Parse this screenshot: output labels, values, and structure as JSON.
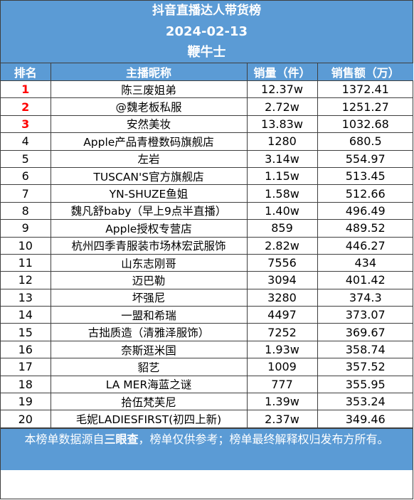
{
  "header": {
    "title": "抖音直播达人带货榜",
    "date": "2024-02-13",
    "brand": "鞭牛士"
  },
  "columns": [
    "排名",
    "主播昵称",
    "销量（件）",
    "销售额（万）"
  ],
  "colors": {
    "header_bg": "#5b9bd5",
    "top_rank": "#ff0000"
  },
  "rows": [
    {
      "rank": "1",
      "name": "陈三废姐弟",
      "sales": "12.37w",
      "revenue": "1372.41"
    },
    {
      "rank": "2",
      "name": "@魏老板私服",
      "sales": "2.72w",
      "revenue": "1251.27"
    },
    {
      "rank": "3",
      "name": "安然美妆",
      "sales": "13.83w",
      "revenue": "1032.68"
    },
    {
      "rank": "4",
      "name": "Apple产品青橙数码旗舰店",
      "sales": "1280",
      "revenue": "680.5"
    },
    {
      "rank": "5",
      "name": "左岩",
      "sales": "3.14w",
      "revenue": "554.97"
    },
    {
      "rank": "6",
      "name": "TUSCAN'S官方旗舰店",
      "sales": "1.15w",
      "revenue": "513.45"
    },
    {
      "rank": "7",
      "name": "YN-SHUZE鱼姐",
      "sales": "1.58w",
      "revenue": "512.66"
    },
    {
      "rank": "8",
      "name": "魏凡舒baby（早上9点半直播）",
      "sales": "1.40w",
      "revenue": "496.49"
    },
    {
      "rank": "9",
      "name": "Apple授权专营店",
      "sales": "859",
      "revenue": "489.52"
    },
    {
      "rank": "10",
      "name": "杭州四季青服装市场林宏武服饰",
      "sales": "2.82w",
      "revenue": "446.27"
    },
    {
      "rank": "11",
      "name": "山东志刚哥",
      "sales": "7556",
      "revenue": "434"
    },
    {
      "rank": "12",
      "name": "迈巴勒",
      "sales": "3094",
      "revenue": "401.42"
    },
    {
      "rank": "13",
      "name": "坏强尼",
      "sales": "3280",
      "revenue": "374.3"
    },
    {
      "rank": "14",
      "name": "一盟和希瑞",
      "sales": "4497",
      "revenue": "373.07"
    },
    {
      "rank": "15",
      "name": "古拙质造（清雅泽服饰）",
      "sales": "7252",
      "revenue": "369.67"
    },
    {
      "rank": "16",
      "name": "奈斯逛米国",
      "sales": "1.93w",
      "revenue": "358.74"
    },
    {
      "rank": "17",
      "name": "貂艺",
      "sales": "1009",
      "revenue": "357.52"
    },
    {
      "rank": "18",
      "name": "LA MER海蓝之谜",
      "sales": "777",
      "revenue": "355.95"
    },
    {
      "rank": "19",
      "name": "拾伍梵芙尼",
      "sales": "1.39w",
      "revenue": "353.24"
    },
    {
      "rank": "20",
      "name": "毛妮LADIESFIRST(初四上新)",
      "sales": "2.37w",
      "revenue": "349.46"
    }
  ],
  "footer": {
    "text_before": "本榜单数据源自",
    "source": "三眼查",
    "text_after": "，榜单仅供参考；榜单最终解释权归发布方所有。"
  }
}
